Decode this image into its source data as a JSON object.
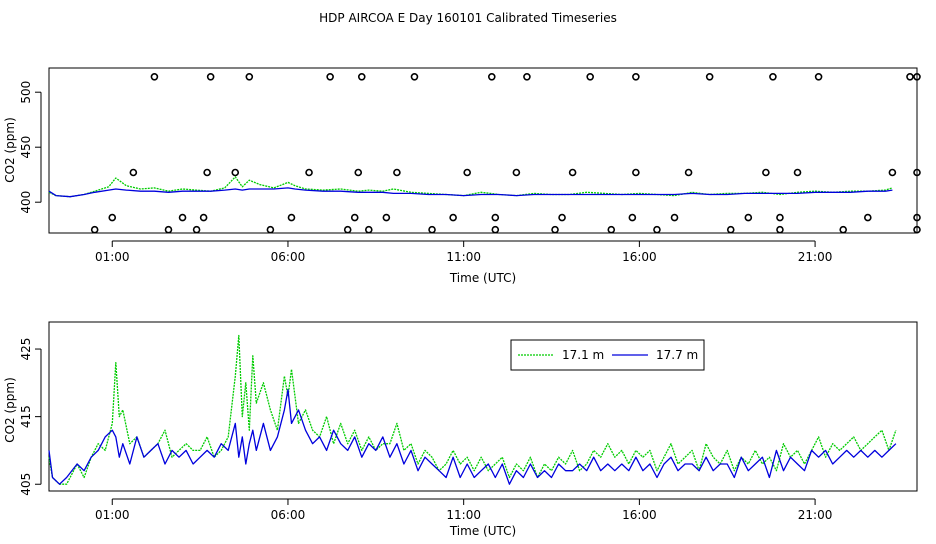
{
  "title": "HDP AIRCOA E  Day 160101  Calibrated Timeseries",
  "chart_data": [
    {
      "type": "line",
      "title": "",
      "xlabel": "Time (UTC)",
      "ylabel": "CO2 (ppm)",
      "xlim": [
        -0.8,
        23.9
      ],
      "ylim": [
        372,
        522
      ],
      "xticks": [
        1,
        6,
        11,
        16,
        21
      ],
      "xticklabels": [
        "01:00",
        "06:00",
        "11:00",
        "16:00",
        "21:00"
      ],
      "yticks": [
        400,
        450,
        500
      ],
      "yticklabels": [
        "400",
        "450",
        "500"
      ],
      "series": [
        {
          "name": "17.1 m",
          "color": "#00cc00",
          "x": [
            -0.9,
            -0.6,
            -0.2,
            0.2,
            0.5,
            0.9,
            1.1,
            1.4,
            1.8,
            2.2,
            2.6,
            3.0,
            3.4,
            3.8,
            4.2,
            4.5,
            4.7,
            4.9,
            5.2,
            5.6,
            6.0,
            6.2,
            6.5,
            7.0,
            7.5,
            8.0,
            8.3,
            8.7,
            9.0,
            9.5,
            10.0,
            10.5,
            11.0,
            11.5,
            12.0,
            12.5,
            13.0,
            13.5,
            14.0,
            14.5,
            15.0,
            15.5,
            16.0,
            16.5,
            17.0,
            17.5,
            18.0,
            18.5,
            19.0,
            19.5,
            20.0,
            20.5,
            21.0,
            21.5,
            22.0,
            22.5,
            23.0,
            23.2
          ],
          "y": [
            409,
            406,
            405,
            407,
            410,
            414,
            422,
            415,
            412,
            413,
            410,
            412,
            411,
            410,
            413,
            423,
            414,
            420,
            416,
            413,
            418,
            415,
            412,
            411,
            412,
            410,
            411,
            410,
            412,
            409,
            408,
            407,
            406,
            409,
            407,
            406,
            408,
            407,
            407,
            409,
            408,
            407,
            408,
            407,
            406,
            409,
            407,
            408,
            408,
            409,
            407,
            409,
            410,
            409,
            410,
            410,
            411,
            413
          ]
        },
        {
          "name": "17.7 m",
          "color": "#0000dd",
          "x": [
            -0.9,
            -0.6,
            -0.2,
            0.2,
            0.5,
            0.9,
            1.1,
            1.4,
            1.8,
            2.2,
            2.6,
            3.0,
            3.4,
            3.8,
            4.2,
            4.5,
            4.7,
            4.9,
            5.2,
            5.6,
            6.0,
            6.2,
            6.5,
            7.0,
            7.5,
            8.0,
            8.3,
            8.7,
            9.0,
            9.5,
            10.0,
            10.5,
            11.0,
            11.5,
            12.0,
            12.5,
            13.0,
            13.5,
            14.0,
            14.5,
            15.0,
            15.5,
            16.0,
            16.5,
            17.0,
            17.5,
            18.0,
            18.5,
            19.0,
            19.5,
            20.0,
            20.5,
            21.0,
            21.5,
            22.0,
            22.5,
            23.0,
            23.2
          ],
          "y": [
            410,
            406,
            405,
            407,
            409,
            411,
            412,
            411,
            410,
            410,
            409,
            410,
            410,
            410,
            411,
            412,
            411,
            412,
            412,
            412,
            413,
            412,
            411,
            410,
            410,
            409,
            409,
            409,
            408,
            408,
            407,
            407,
            406,
            407,
            407,
            406,
            407,
            407,
            407,
            407,
            407,
            407,
            407,
            407,
            407,
            408,
            407,
            407,
            408,
            408,
            408,
            408,
            409,
            409,
            409,
            410,
            410,
            411
          ]
        },
        {
          "name": "",
          "type": "scatter",
          "marker": "circle-open",
          "color": "#000000",
          "x": [
            0.5,
            1.0,
            1.6,
            2.2,
            2.6,
            3.0,
            3.4,
            3.6,
            3.7,
            3.8,
            4.5,
            4.9,
            5.5,
            6.1,
            6.6,
            7.2,
            7.7,
            7.9,
            8.0,
            8.1,
            8.3,
            8.8,
            9.1,
            9.6,
            10.1,
            10.7,
            11.1,
            11.8,
            11.9,
            11.9,
            12.5,
            12.8,
            13.6,
            13.8,
            14.1,
            14.6,
            15.2,
            15.8,
            15.9,
            15.9,
            16.5,
            17.0,
            17.4,
            18.0,
            18.6,
            19.1,
            19.6,
            19.8,
            20.0,
            20.0,
            20.5,
            21.1,
            21.8,
            22.5,
            23.2,
            23.7,
            23.9,
            24.0,
            24.1,
            24.2
          ],
          "y": [
            375,
            386,
            427,
            514,
            375,
            386,
            375,
            386,
            427,
            514,
            427,
            514,
            375,
            386,
            427,
            514,
            375,
            386,
            427,
            514,
            375,
            386,
            427,
            514,
            375,
            386,
            427,
            514,
            375,
            386,
            427,
            514,
            375,
            386,
            427,
            514,
            375,
            386,
            427,
            514,
            375,
            386,
            427,
            514,
            375,
            386,
            427,
            514,
            375,
            386,
            427,
            514,
            375,
            386,
            427,
            514,
            375,
            386,
            427,
            514
          ]
        }
      ]
    },
    {
      "type": "line",
      "title": "",
      "xlabel": "Time (UTC)",
      "ylabel": "CO2 (ppm)",
      "xlim": [
        -0.8,
        23.9
      ],
      "ylim": [
        404,
        429
      ],
      "xticks": [
        1,
        6,
        11,
        16,
        21
      ],
      "xticklabels": [
        "01:00",
        "06:00",
        "11:00",
        "16:00",
        "21:00"
      ],
      "yticks": [
        405,
        415,
        425
      ],
      "yticklabels": [
        "405",
        "415",
        "425"
      ],
      "legend": "top-right",
      "series": [
        {
          "name": "17.1 m",
          "color": "#00cc00",
          "x": [
            -0.9,
            -0.7,
            -0.5,
            -0.3,
            0.0,
            0.2,
            0.4,
            0.6,
            0.8,
            1.0,
            1.1,
            1.2,
            1.3,
            1.5,
            1.7,
            1.9,
            2.1,
            2.3,
            2.5,
            2.7,
            2.9,
            3.1,
            3.3,
            3.5,
            3.7,
            3.9,
            4.1,
            4.3,
            4.5,
            4.6,
            4.7,
            4.8,
            4.9,
            5.0,
            5.1,
            5.3,
            5.5,
            5.7,
            5.9,
            6.0,
            6.1,
            6.3,
            6.5,
            6.7,
            6.9,
            7.1,
            7.3,
            7.5,
            7.7,
            7.9,
            8.1,
            8.3,
            8.5,
            8.7,
            8.9,
            9.1,
            9.3,
            9.5,
            9.7,
            9.9,
            10.1,
            10.3,
            10.5,
            10.7,
            10.9,
            11.1,
            11.3,
            11.5,
            11.7,
            11.9,
            12.1,
            12.3,
            12.5,
            12.7,
            12.9,
            13.1,
            13.3,
            13.5,
            13.7,
            13.9,
            14.1,
            14.3,
            14.5,
            14.7,
            14.9,
            15.1,
            15.3,
            15.5,
            15.7,
            15.9,
            16.1,
            16.3,
            16.5,
            16.7,
            16.9,
            17.1,
            17.3,
            17.5,
            17.7,
            17.9,
            18.1,
            18.3,
            18.5,
            18.7,
            18.9,
            19.1,
            19.3,
            19.5,
            19.7,
            19.9,
            20.1,
            20.3,
            20.5,
            20.7,
            20.9,
            21.1,
            21.3,
            21.5,
            21.7,
            21.9,
            22.1,
            22.3,
            22.5,
            22.7,
            22.9,
            23.1,
            23.3
          ],
          "y": [
            409,
            406,
            405,
            405,
            408,
            406,
            409,
            411,
            410,
            414,
            423,
            415,
            416,
            411,
            412,
            409,
            410,
            411,
            413,
            409,
            410,
            411,
            410,
            410,
            412,
            409,
            410,
            412,
            421,
            427,
            415,
            420,
            413,
            424,
            417,
            420,
            416,
            413,
            421,
            418,
            422,
            414,
            416,
            413,
            412,
            415,
            411,
            414,
            411,
            413,
            410,
            412,
            410,
            411,
            411,
            414,
            410,
            411,
            408,
            410,
            409,
            407,
            408,
            410,
            408,
            409,
            407,
            409,
            407,
            408,
            409,
            406,
            408,
            407,
            409,
            406,
            408,
            407,
            409,
            408,
            410,
            407,
            408,
            410,
            409,
            411,
            409,
            410,
            408,
            410,
            409,
            410,
            407,
            409,
            411,
            408,
            409,
            410,
            407,
            411,
            409,
            408,
            410,
            407,
            409,
            408,
            410,
            408,
            409,
            407,
            411,
            409,
            410,
            408,
            410,
            412,
            409,
            411,
            410,
            411,
            412,
            410,
            411,
            412,
            413,
            410,
            413
          ]
        },
        {
          "name": "17.7 m",
          "color": "#0000dd",
          "x": [
            -0.9,
            -0.7,
            -0.5,
            -0.3,
            0.0,
            0.2,
            0.4,
            0.6,
            0.8,
            1.0,
            1.1,
            1.2,
            1.3,
            1.5,
            1.7,
            1.9,
            2.1,
            2.3,
            2.5,
            2.7,
            2.9,
            3.1,
            3.3,
            3.5,
            3.7,
            3.9,
            4.1,
            4.3,
            4.5,
            4.6,
            4.7,
            4.8,
            4.9,
            5.0,
            5.1,
            5.3,
            5.5,
            5.7,
            5.9,
            6.0,
            6.1,
            6.3,
            6.5,
            6.7,
            6.9,
            7.1,
            7.3,
            7.5,
            7.7,
            7.9,
            8.1,
            8.3,
            8.5,
            8.7,
            8.9,
            9.1,
            9.3,
            9.5,
            9.7,
            9.9,
            10.1,
            10.3,
            10.5,
            10.7,
            10.9,
            11.1,
            11.3,
            11.5,
            11.7,
            11.9,
            12.1,
            12.3,
            12.5,
            12.7,
            12.9,
            13.1,
            13.3,
            13.5,
            13.7,
            13.9,
            14.1,
            14.3,
            14.5,
            14.7,
            14.9,
            15.1,
            15.3,
            15.5,
            15.7,
            15.9,
            16.1,
            16.3,
            16.5,
            16.7,
            16.9,
            17.1,
            17.3,
            17.5,
            17.7,
            17.9,
            18.1,
            18.3,
            18.5,
            18.7,
            18.9,
            19.1,
            19.3,
            19.5,
            19.7,
            19.9,
            20.1,
            20.3,
            20.5,
            20.7,
            20.9,
            21.1,
            21.3,
            21.5,
            21.7,
            21.9,
            22.1,
            22.3,
            22.5,
            22.7,
            22.9,
            23.1,
            23.3
          ],
          "y": [
            410,
            406,
            405,
            406,
            408,
            407,
            409,
            410,
            412,
            413,
            412,
            409,
            411,
            408,
            412,
            409,
            410,
            411,
            408,
            410,
            409,
            410,
            408,
            409,
            410,
            409,
            411,
            410,
            414,
            409,
            412,
            408,
            411,
            413,
            410,
            414,
            410,
            412,
            416,
            419,
            414,
            416,
            413,
            411,
            412,
            410,
            413,
            411,
            410,
            412,
            409,
            411,
            410,
            412,
            409,
            411,
            408,
            410,
            407,
            409,
            408,
            407,
            406,
            409,
            406,
            408,
            406,
            407,
            408,
            406,
            408,
            405,
            407,
            406,
            408,
            406,
            407,
            406,
            408,
            407,
            407,
            408,
            407,
            409,
            407,
            408,
            407,
            408,
            407,
            409,
            407,
            408,
            406,
            408,
            409,
            407,
            408,
            408,
            407,
            409,
            407,
            408,
            408,
            406,
            409,
            407,
            408,
            409,
            406,
            410,
            407,
            409,
            408,
            407,
            410,
            409,
            410,
            408,
            409,
            410,
            409,
            410,
            409,
            410,
            409,
            410,
            411
          ]
        }
      ]
    }
  ]
}
